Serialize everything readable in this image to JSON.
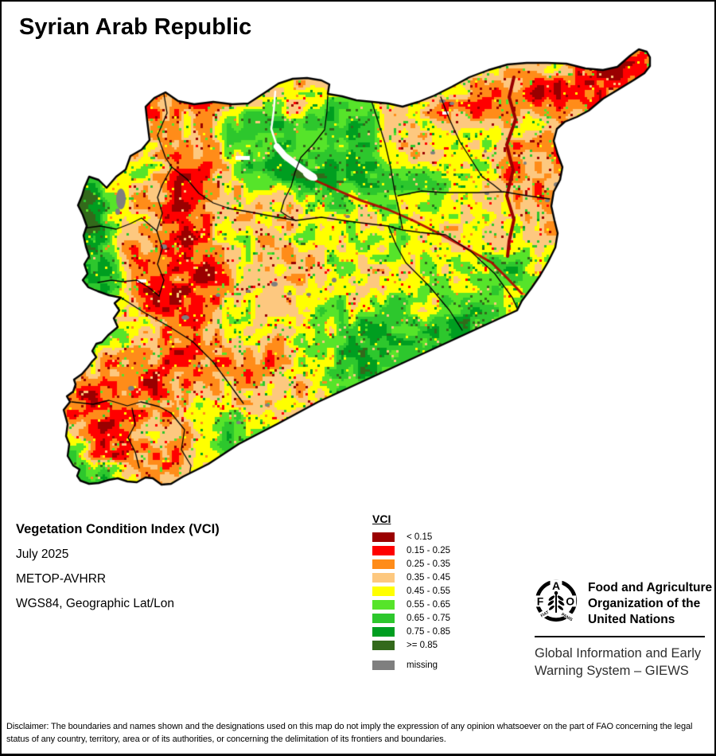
{
  "page": {
    "title": "Syrian Arab Republic"
  },
  "info": {
    "heading": "Vegetation Condition Index (VCI)",
    "period": "July 2025",
    "sensor": "METOP-AVHRR",
    "projection": "WGS84, Geographic Lat/Lon"
  },
  "legend": {
    "title": "VCI",
    "items": [
      {
        "label": "< 0.15",
        "color": "#9a0000"
      },
      {
        "label": "0.15 - 0.25",
        "color": "#ff0000"
      },
      {
        "label": "0.25 - 0.35",
        "color": "#ff8c19"
      },
      {
        "label": "0.35 - 0.45",
        "color": "#fdc87f"
      },
      {
        "label": "0.45 - 0.55",
        "color": "#ffff00"
      },
      {
        "label": "0.55 - 0.65",
        "color": "#56e42a"
      },
      {
        "label": "0.65 - 0.75",
        "color": "#2dc72d"
      },
      {
        "label": "0.75 - 0.85",
        "color": "#009e20"
      },
      {
        "label": ">= 0.85",
        "color": "#33691b"
      }
    ],
    "missing": {
      "label": "missing",
      "color": "#7f7f7f"
    }
  },
  "fao": {
    "org_lines": [
      "Food and Agriculture",
      "Organization of the",
      "United Nations"
    ],
    "giews_lines": [
      "Global Information and Early",
      "Warning System – GIEWS"
    ],
    "logo": {
      "f": "F",
      "a": "A",
      "o": "O",
      "motto_left": "FIAT",
      "motto_right": "PANIS"
    }
  },
  "map": {
    "country": "Syrian Arab Republic",
    "background": "#ffffff",
    "border_color": "#000000",
    "water_color": "#ffffff"
  },
  "disclaimer": "Disclaimer: The boundaries and names shown and the designations used on this map do not imply the expression of any opinion whatsoever on the part of FAO concerning the legal status of any country, territory, area or of its authorities, or concerning the delimitation of its frontiers and boundaries."
}
